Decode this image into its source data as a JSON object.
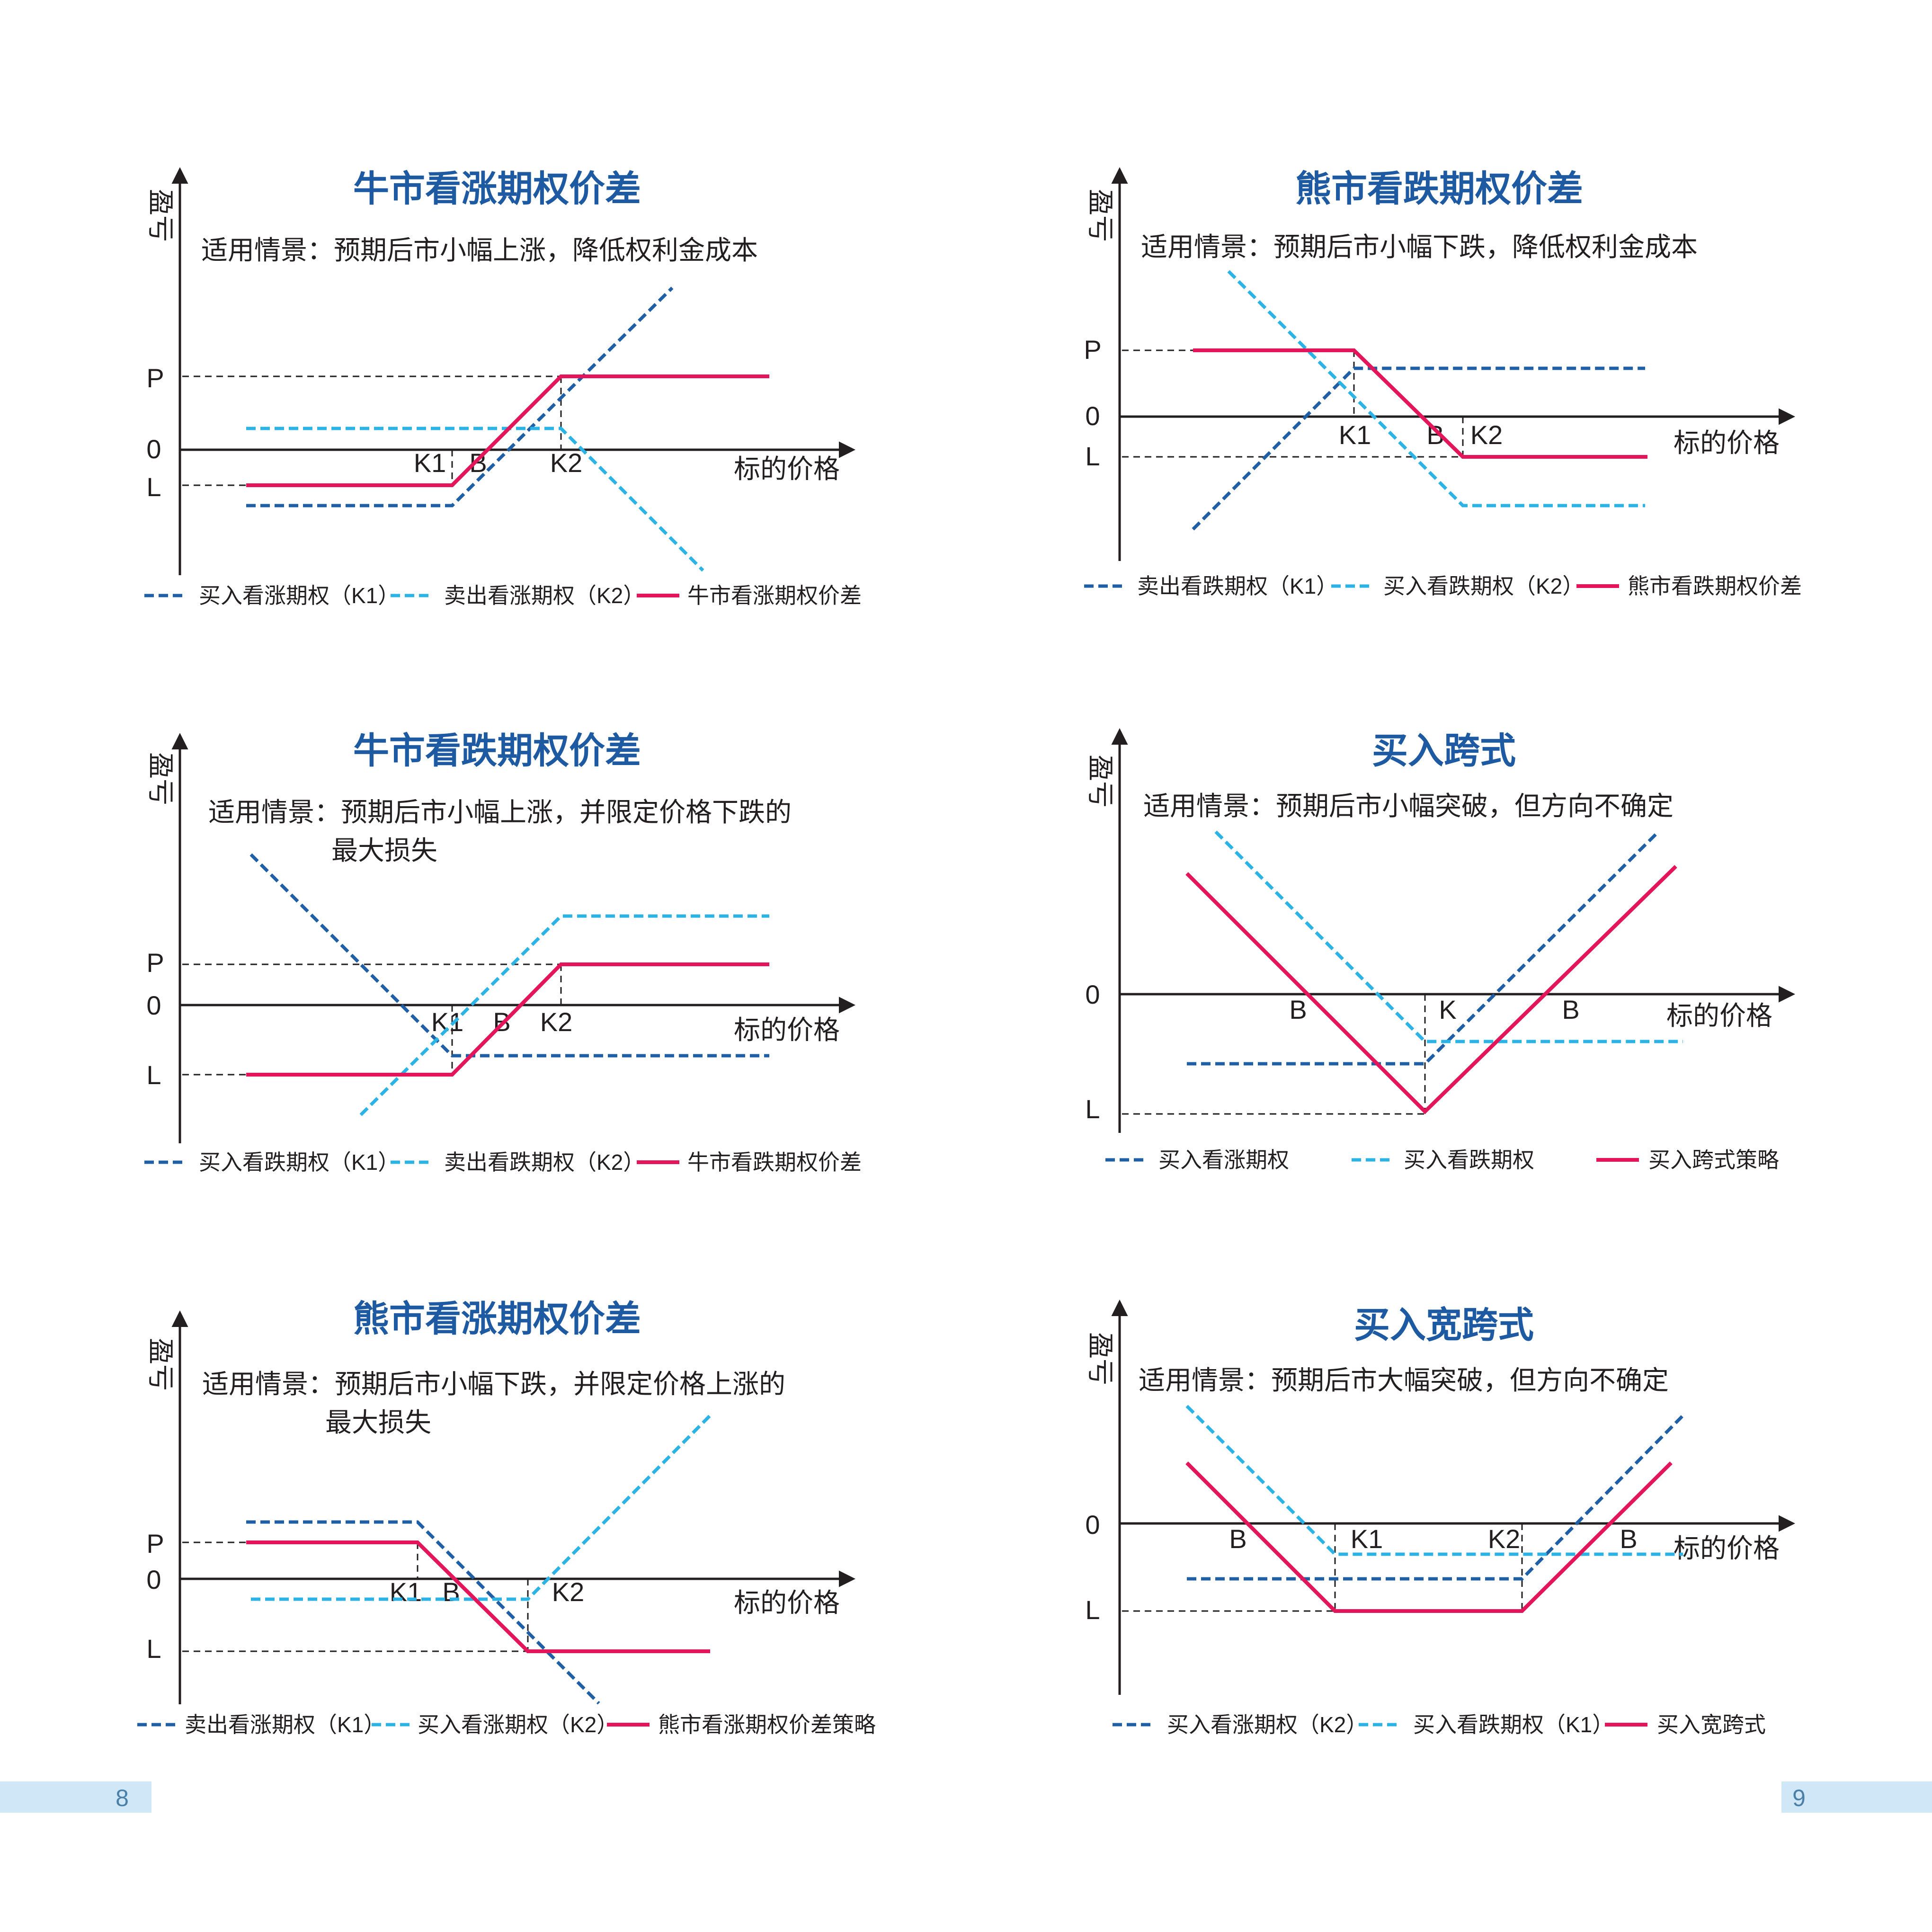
{
  "colors": {
    "dark_blue": "#1f5fa6",
    "light_blue": "#2bb3e6",
    "red": "#e3165b",
    "title": "#1d5aa1",
    "page_bar": "#cfe7f6"
  },
  "pages": {
    "left": "8",
    "right": "9"
  },
  "common": {
    "y_axis": "盈亏",
    "x_axis": "标的价格",
    "scenario_prefix": "适用情景："
  },
  "charts": [
    {
      "title": "牛市看涨期权价差",
      "scenario": [
        "预期后市小幅上涨，降低权利金成本"
      ],
      "y_labels": [
        "P",
        "0",
        "L"
      ],
      "x_labels": [
        "K1",
        "B",
        "K2"
      ],
      "legend": [
        "买入看涨期权（K1）",
        "卖出看涨期权（K2）",
        "牛市看涨期权价差"
      ]
    },
    {
      "title": "熊市看跌期权价差",
      "scenario": [
        "预期后市小幅下跌，降低权利金成本"
      ],
      "y_labels": [
        "P",
        "0",
        "L"
      ],
      "x_labels": [
        "K1",
        "B",
        "K2"
      ],
      "legend": [
        "卖出看跌期权（K1）",
        "买入看跌期权（K2）",
        "熊市看跌期权价差"
      ]
    },
    {
      "title": "牛市看跌期权价差",
      "scenario": [
        "预期后市小幅上涨，并限定价格下跌的",
        "最大损失"
      ],
      "y_labels": [
        "P",
        "0",
        "L"
      ],
      "x_labels": [
        "K1",
        "B",
        "K2"
      ],
      "legend": [
        "买入看跌期权（K1）",
        "卖出看跌期权（K2）",
        "牛市看跌期权价差"
      ]
    },
    {
      "title": "买入跨式",
      "scenario": [
        "预期后市小幅突破，但方向不确定"
      ],
      "y_labels": [
        "0",
        "L"
      ],
      "x_labels": [
        "B",
        "K",
        "B"
      ],
      "legend": [
        "买入看涨期权",
        "买入看跌期权",
        "买入跨式策略"
      ]
    },
    {
      "title": "熊市看涨期权价差",
      "scenario": [
        "预期后市小幅下跌，并限定价格上涨的",
        "最大损失"
      ],
      "y_labels": [
        "P",
        "0",
        "L"
      ],
      "x_labels": [
        "K1",
        "B",
        "K2"
      ],
      "legend": [
        "卖出看涨期权（K1）",
        "买入看涨期权（K2）",
        "熊市看涨期权价差策略"
      ]
    },
    {
      "title": "买入宽跨式",
      "scenario": [
        "预期后市大幅突破，但方向不确定"
      ],
      "y_labels": [
        "0",
        "L"
      ],
      "x_labels": [
        "B",
        "K1",
        "K2",
        "B"
      ],
      "legend": [
        "买入看涨期权（K2）",
        "买入看跌期权（K1）",
        "买入宽跨式"
      ]
    }
  ]
}
